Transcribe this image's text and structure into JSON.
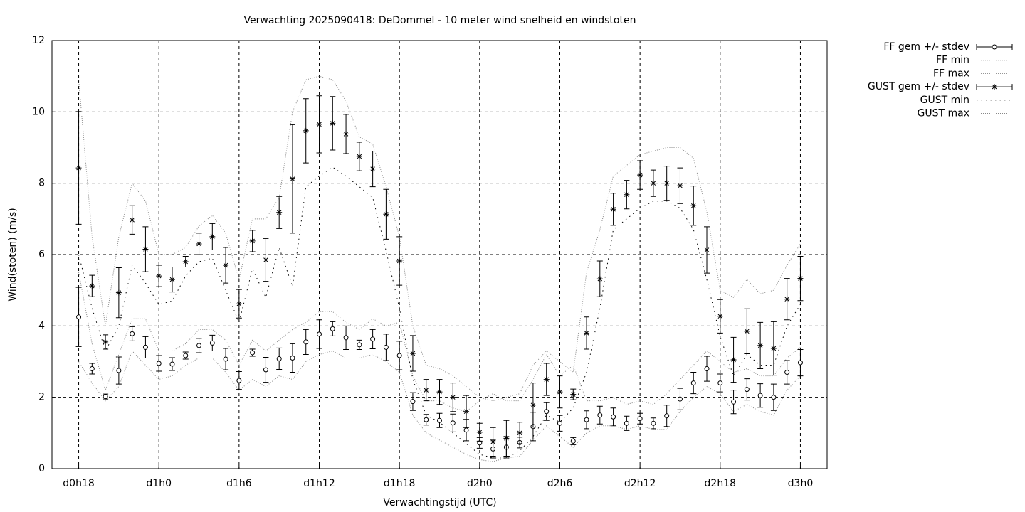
{
  "chart_data": {
    "type": "errorbar-line",
    "title": "Verwachting 2025090418: DeDommel - 10 meter wind snelheid en windstoten",
    "xlabel": "Verwachtingstijd (UTC)",
    "ylabel": "Wind(stoten) (m/s)",
    "x": [
      18,
      19,
      20,
      21,
      22,
      23,
      24,
      25,
      26,
      27,
      28,
      29,
      30,
      31,
      32,
      33,
      34,
      35,
      36,
      37,
      38,
      39,
      40,
      41,
      42,
      43,
      44,
      45,
      46,
      47,
      48,
      49,
      50,
      51,
      52,
      53,
      54,
      55,
      56,
      57,
      58,
      59,
      60,
      61,
      62,
      63,
      64,
      65,
      66,
      67,
      68,
      69,
      70,
      71,
      72
    ],
    "xlim": [
      16,
      74
    ],
    "xticks": [
      {
        "value": 18,
        "label": "d0h18"
      },
      {
        "value": 24,
        "label": "d1h0"
      },
      {
        "value": 30,
        "label": "d1h6"
      },
      {
        "value": 36,
        "label": "d1h12"
      },
      {
        "value": 42,
        "label": "d1h18"
      },
      {
        "value": 48,
        "label": "d2h0"
      },
      {
        "value": 54,
        "label": "d2h6"
      },
      {
        "value": 60,
        "label": "d2h12"
      },
      {
        "value": 66,
        "label": "d2h18"
      },
      {
        "value": 72,
        "label": "d3h0"
      }
    ],
    "ylim": [
      0,
      12
    ],
    "yticks": [
      0,
      2,
      4,
      6,
      8,
      10,
      12
    ],
    "grid": true,
    "legend": "outside-right",
    "series": [
      {
        "name": "FF gem +/- stdev",
        "color": "#000000",
        "style": "errorbars",
        "marker": "circle",
        "values": [
          4.25,
          2.8,
          2.02,
          2.75,
          3.78,
          3.4,
          2.95,
          2.93,
          3.17,
          3.45,
          3.52,
          3.07,
          2.47,
          3.25,
          2.77,
          3.08,
          3.1,
          3.55,
          3.77,
          3.92,
          3.67,
          3.47,
          3.63,
          3.4,
          3.17,
          1.88,
          1.37,
          1.35,
          1.28,
          1.08,
          0.72,
          0.55,
          0.6,
          0.73,
          1.18,
          1.6,
          1.27,
          0.77,
          1.37,
          1.5,
          1.45,
          1.27,
          1.4,
          1.27,
          1.48,
          1.95,
          2.4,
          2.8,
          2.4,
          1.87,
          2.22,
          2.05,
          2.0,
          2.7,
          2.97
        ],
        "errors": [
          0.83,
          0.15,
          0.07,
          0.38,
          0.2,
          0.3,
          0.22,
          0.18,
          0.1,
          0.2,
          0.22,
          0.3,
          0.25,
          0.1,
          0.35,
          0.3,
          0.4,
          0.35,
          0.4,
          0.2,
          0.33,
          0.13,
          0.27,
          0.37,
          0.4,
          0.25,
          0.15,
          0.2,
          0.25,
          0.3,
          0.15,
          0.25,
          0.3,
          0.15,
          0.4,
          0.25,
          0.22,
          0.1,
          0.25,
          0.25,
          0.25,
          0.2,
          0.15,
          0.15,
          0.3,
          0.3,
          0.3,
          0.35,
          0.25,
          0.33,
          0.3,
          0.33,
          0.37,
          0.33,
          0.37
        ]
      },
      {
        "name": "FF min",
        "color": "#888888",
        "style": "dotted-fine",
        "values": [
          3.0,
          2.4,
          1.9,
          2.3,
          3.3,
          2.9,
          2.5,
          2.6,
          2.9,
          3.1,
          3.1,
          2.7,
          2.2,
          2.5,
          2.3,
          2.6,
          2.5,
          3.0,
          3.2,
          3.3,
          3.1,
          3.1,
          3.2,
          3.0,
          2.7,
          1.5,
          1.0,
          0.8,
          0.6,
          0.4,
          0.25,
          0.2,
          0.3,
          0.35,
          0.8,
          1.2,
          0.9,
          0.6,
          1.0,
          1.2,
          1.2,
          1.1,
          1.2,
          1.1,
          1.1,
          1.6,
          2.0,
          2.3,
          2.1,
          1.6,
          1.8,
          1.6,
          1.5,
          2.2,
          2.6
        ]
      },
      {
        "name": "FF max",
        "color": "#888888",
        "style": "dotted-fine",
        "values": [
          5.5,
          3.5,
          2.2,
          3.2,
          4.2,
          4.2,
          3.3,
          3.3,
          3.5,
          3.9,
          3.9,
          3.6,
          2.9,
          3.6,
          3.3,
          3.6,
          3.9,
          4.1,
          4.4,
          4.4,
          4.1,
          3.9,
          4.2,
          4.0,
          4.1,
          2.6,
          1.9,
          1.9,
          1.7,
          1.6,
          1.9,
          2.1,
          1.9,
          1.9,
          2.5,
          3.2,
          2.6,
          2.9,
          1.9,
          1.9,
          2.0,
          1.8,
          1.9,
          1.8,
          2.1,
          2.5,
          2.9,
          3.3,
          3.0,
          2.7,
          2.8,
          2.6,
          2.6,
          3.1,
          3.4
        ]
      },
      {
        "name": "GUST gem +/- stdev",
        "color": "#000000",
        "style": "errorbars",
        "marker": "star",
        "values": [
          8.43,
          5.12,
          3.55,
          4.93,
          6.97,
          6.15,
          5.4,
          5.3,
          5.8,
          6.3,
          6.5,
          5.7,
          4.62,
          6.38,
          5.85,
          7.18,
          8.12,
          9.47,
          9.65,
          9.68,
          9.38,
          8.75,
          8.4,
          7.13,
          5.82,
          3.23,
          2.2,
          2.15,
          2.0,
          1.6,
          1.02,
          0.75,
          0.85,
          1.0,
          1.78,
          2.5,
          2.15,
          2.08,
          3.8,
          5.32,
          7.27,
          7.68,
          8.23,
          8.0,
          8.0,
          7.93,
          7.37,
          6.13,
          4.27,
          3.05,
          3.85,
          3.45,
          3.37,
          4.75,
          5.33
        ],
        "errors": [
          1.58,
          0.3,
          0.2,
          0.7,
          0.4,
          0.63,
          0.3,
          0.35,
          0.15,
          0.3,
          0.37,
          0.5,
          0.4,
          0.3,
          0.6,
          0.45,
          1.52,
          0.9,
          0.8,
          0.75,
          0.55,
          0.4,
          0.5,
          0.7,
          0.68,
          0.5,
          0.3,
          0.35,
          0.4,
          0.45,
          0.25,
          0.4,
          0.5,
          0.3,
          0.62,
          0.45,
          0.45,
          0.15,
          0.45,
          0.5,
          0.45,
          0.4,
          0.4,
          0.37,
          0.48,
          0.5,
          0.55,
          0.65,
          0.47,
          0.63,
          0.63,
          0.65,
          0.75,
          0.58,
          0.62
        ]
      },
      {
        "name": "GUST min",
        "color": "#000000",
        "style": "dotted-wide",
        "values": [
          6.0,
          4.5,
          3.3,
          4.0,
          5.7,
          5.2,
          4.6,
          4.7,
          5.4,
          5.8,
          5.9,
          5.0,
          4.1,
          5.6,
          4.8,
          6.2,
          5.1,
          7.9,
          8.2,
          8.45,
          8.2,
          7.9,
          7.6,
          6.1,
          4.5,
          2.5,
          1.5,
          1.3,
          1.0,
          0.7,
          0.4,
          0.3,
          0.3,
          0.5,
          0.9,
          1.5,
          1.3,
          1.7,
          2.7,
          4.5,
          6.7,
          7.0,
          7.3,
          7.5,
          7.5,
          7.3,
          6.7,
          5.3,
          3.7,
          2.6,
          3.2,
          2.9,
          2.9,
          4.0,
          4.6
        ]
      },
      {
        "name": "GUST max",
        "color": "#888888",
        "style": "dotted-fine",
        "values": [
          10.9,
          6.5,
          4.0,
          6.5,
          8.0,
          7.5,
          6.0,
          6.0,
          6.2,
          6.8,
          7.1,
          6.6,
          5.3,
          7.0,
          7.0,
          7.6,
          10.0,
          10.9,
          11.0,
          10.9,
          10.3,
          9.3,
          9.1,
          7.9,
          6.5,
          4.0,
          2.9,
          2.8,
          2.6,
          2.3,
          2.0,
          1.9,
          2.0,
          2.1,
          2.9,
          3.3,
          3.0,
          2.7,
          5.5,
          6.7,
          8.2,
          8.5,
          8.8,
          8.9,
          9.0,
          9.0,
          8.7,
          7.2,
          5.0,
          4.8,
          5.3,
          4.9,
          5.0,
          5.7,
          6.3
        ]
      }
    ]
  }
}
